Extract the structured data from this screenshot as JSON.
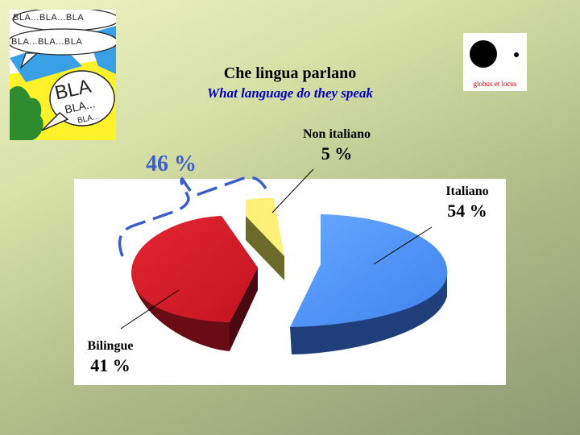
{
  "slide": {
    "title": "Che lingua parlano",
    "subtitle": "What language do they speak"
  },
  "comic": {
    "bubble_texts": [
      "BLA...BLA...BLA",
      "BLA...BLA...BLA",
      "BLA",
      "BLA...",
      "BLA..."
    ]
  },
  "logo": {
    "caption": "globus et locus",
    "icon": "globe-dot-logo-icon"
  },
  "chart_data": {
    "type": "pie",
    "title": "",
    "slices": [
      {
        "label": "Italiano",
        "value": 54,
        "display": "54 %",
        "color": "#5599ff"
      },
      {
        "label": "Bilingue",
        "value": 41,
        "display": "41 %",
        "color": "#d41a28"
      },
      {
        "label": "Non italiano",
        "value": 5,
        "display": "5 %",
        "color": "#fff07a"
      }
    ],
    "annotation": {
      "text": "46 %",
      "groups": [
        "Bilingue",
        "Non italiano"
      ],
      "color": "#3a5fcd"
    },
    "style": "3d-exploded"
  }
}
